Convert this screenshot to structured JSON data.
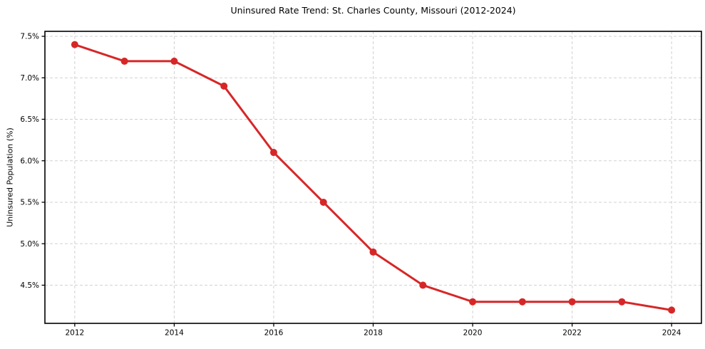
{
  "chart_data": {
    "type": "line",
    "title": "Uninsured Rate Trend: St. Charles County, Missouri (2012-2024)",
    "ylabel": "Uninsured Population (%)",
    "xlabel": "",
    "series": [
      {
        "name": "Uninsured rate",
        "x": [
          2012,
          2013,
          2014,
          2015,
          2016,
          2017,
          2018,
          2019,
          2020,
          2021,
          2022,
          2023,
          2024
        ],
        "values": [
          7.4,
          7.2,
          7.2,
          6.9,
          6.1,
          5.5,
          4.9,
          4.5,
          4.3,
          4.3,
          4.3,
          4.3,
          4.2
        ]
      }
    ],
    "xlim": [
      2011.4,
      2024.6
    ],
    "ylim": [
      4.04,
      7.56
    ],
    "x_ticks": [
      {
        "value": 2012,
        "label": "2012"
      },
      {
        "value": 2014,
        "label": "2014"
      },
      {
        "value": 2016,
        "label": "2016"
      },
      {
        "value": 2018,
        "label": "2018"
      },
      {
        "value": 2020,
        "label": "2020"
      },
      {
        "value": 2022,
        "label": "2022"
      },
      {
        "value": 2024,
        "label": "2024"
      }
    ],
    "y_ticks": [
      {
        "value": 4.5,
        "label": "4.5%"
      },
      {
        "value": 5.0,
        "label": "5.0%"
      },
      {
        "value": 5.5,
        "label": "5.5%"
      },
      {
        "value": 6.0,
        "label": "6.0%"
      },
      {
        "value": 6.5,
        "label": "6.5%"
      },
      {
        "value": 7.0,
        "label": "7.0%"
      },
      {
        "value": 7.5,
        "label": "7.5%"
      }
    ],
    "grid": true,
    "grid_style": "dashed",
    "legend": "none",
    "line_color": "#d62728",
    "marker_color": "#d62728",
    "grid_color": "#cccccc",
    "spine_color": "#000000",
    "text_color": "#000000",
    "background": "#ffffff"
  }
}
